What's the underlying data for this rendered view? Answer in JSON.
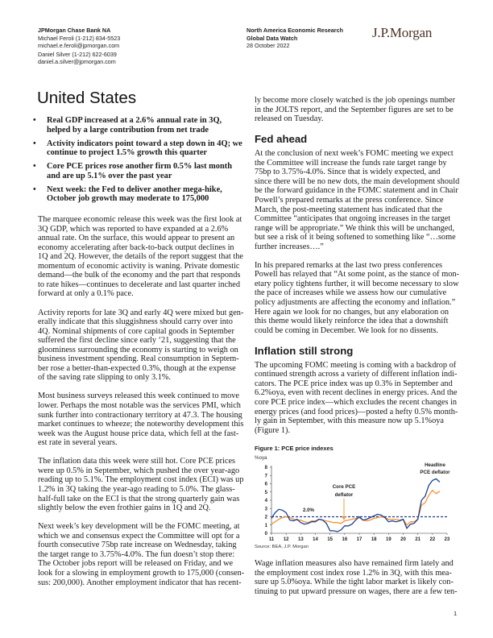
{
  "header": {
    "left": {
      "org": "JPMorgan Chase Bank NA",
      "authors": [
        {
          "name_phone": "Michael Feroli (1-212) 834-5523",
          "email": "michael.e.feroli@jpmorgan.com"
        },
        {
          "name_phone": "Daniel Silver (1-212) 622-6039",
          "email": "daniel.a.silver@jpmorgan.com"
        }
      ]
    },
    "center": {
      "dept": "North America Economic Research",
      "publication": "Global Data Watch",
      "date": "28 October 2022"
    },
    "logo": "J.P.Morgan"
  },
  "title": "United States",
  "bullets": [
    [
      "Real GDP increased at a 2.6% annual rate in 3Q,",
      "helped by a large contribution from net trade"
    ],
    [
      "Activity indicators point toward a step down in 4Q; we",
      "continue to project 1.5% growth this quarter"
    ],
    [
      "Core PCE prices rose another firm 0.5% last month",
      "and are up 5.1% over the past year"
    ],
    [
      "Next week: the Fed to deliver another mega-hike,",
      "October job growth may moderate to 175,000"
    ]
  ],
  "left_paragraphs": [
    [
      "The marquee economic release this week was the first look at",
      "3Q GDP, which was reported to have expanded at a 2.6%",
      "annual rate. On the surface, this would appear to present an",
      "economy accelerating after back-to-back output declines in",
      "1Q and 2Q. However, the details of the report suggest that the",
      "momentum of economic activity is waning. Private domestic",
      "demand—the bulk of the economy and the part that responds",
      "to rate hikes—continues to decelerate and last quarter inched",
      "forward at only a 0.1% pace."
    ],
    [
      "Activity reports for late 3Q and early 4Q were mixed but gen-",
      "erally indicate that this sluggishness should carry over into",
      "4Q. Nominal shipments of core capital goods in September",
      "suffered the first decline since early ‘21, suggesting that the",
      "gloominess surrounding the economy is starting to weigh on",
      "business investment spending. Real consumption in Septem-",
      "ber rose a better-than-expected 0.3%, though at the expense",
      "of the saving rate slipping to only 3.1%."
    ],
    [
      "Most business surveys released this week continued to move",
      "lower. Perhaps the most notable was the services PMI, which",
      "sunk further into contractionary territory at 47.3. The housing",
      "market continues to wheeze; the noteworthy development this",
      "week was the August house price data, which fell at the fast-",
      "est rate in several years."
    ],
    [
      "The inflation data this week were still hot. Core PCE prices",
      "were up 0.5% in September, which pushed the over year-ago",
      "reading up to 5.1%. The employment cost index (ECI) was up",
      "1.2% in 3Q taking the year-ago reading to 5.0%. The glass-",
      "half-full take on the ECI is that the strong quarterly gain was",
      "slightly below the even frothier gains in 1Q and 2Q."
    ],
    [
      "Next week’s key development will be the FOMC meeting, at",
      "which we and consensus expect the Committee will opt for a",
      "fourth consecutive 75bp rate increase on Wednesday, taking",
      "the target range to 3.75%-4.0%. The fun doesn’t stop there:",
      "The October jobs report will be released on Friday, and we",
      "look for a slowing in employment growth to 175,000 (consen-",
      "sus: 200,000). Another employment indicator that has recent-"
    ]
  ],
  "right_top": [
    "ly become more closely watched is the job openings number",
    "in the JOLTS report, and the September figures are set to be",
    "released on Tuesday."
  ],
  "fed_ahead": {
    "heading": "Fed ahead",
    "paragraphs": [
      [
        "At the conclusion of next week’s FOMC meeting we expect",
        "the Committee will increase the funds rate target range by",
        "75bp to 3.75%-4.0%.  Since that is widely expected, and",
        "since there will be no new dots, the main development should",
        "be the forward guidance in the FOMC statement and in Chair",
        "Powell’s prepared remarks at the press conference. Since",
        "March, the post-meeting statement has indicated that the",
        "Committee “anticipates that ongoing increases in the target",
        "range will be appropriate.” We think this will be unchanged,",
        "but see a risk of it being softened to something like “…some",
        "further increases….”"
      ],
      [
        "In his prepared remarks at the last two press conferences",
        "Powell has relayed that “At some point, as the stance of mon-",
        "etary policy tightens further, it will become necessary to slow",
        "the pace of increases while we assess how our cumulative",
        "policy adjustments are affecting the economy and inflation.”",
        "Here again we look for no changes, but any elaboration on",
        "this theme would likely reinforce the idea that a downshift",
        "could be coming in December. We look for no dissents."
      ]
    ]
  },
  "inflation": {
    "heading": "Inflation still strong",
    "paragraph": [
      "The upcoming FOMC meeting is coming with a backdrop of",
      "continued strength across a variety of different inflation indi-",
      "cators. The PCE price index was up 0.3% in September and",
      "6.2%oya, even with recent declines in energy prices. And the",
      "core PCE price index—which excludes the recent changes in",
      "energy prices (and food prices)—posted a hefty 0.5% month-",
      "ly gain in September, with this measure now up 5.1%oya",
      "(Figure 1)."
    ],
    "after_figure": [
      "Wage inflation measures also have remained firm lately and",
      "the employment cost index rose 1.2% in 3Q, with this mea-",
      "sure up 5.0%oya. While the tight labor market is likely con-",
      "tinuing to put upward pressure on wages, there are a few ten-"
    ]
  },
  "chart_data": {
    "type": "line",
    "title": "Figure 1: PCE price indexes",
    "ylabel": "%oya",
    "source": "Source: BEA, J.P. Morgan",
    "xlim": [
      2011,
      2023
    ],
    "ylim": [
      0,
      8
    ],
    "x_tick_labels": [
      "11",
      "12",
      "13",
      "14",
      "15",
      "16",
      "17",
      "18",
      "19",
      "20",
      "21",
      "22",
      "23"
    ],
    "y_tick_labels": [
      "0",
      "1",
      "2",
      "3",
      "4",
      "5",
      "6",
      "7",
      "8"
    ],
    "x_start": 2011,
    "x_step": 0.25,
    "series": [
      {
        "name": "Headline PCE deflator",
        "color": "#1f3f8f",
        "values": [
          1.8,
          2.5,
          2.9,
          2.8,
          2.5,
          1.6,
          1.5,
          1.7,
          1.3,
          1.1,
          1.2,
          1.4,
          1.4,
          1.7,
          1.6,
          1.2,
          0.3,
          0.3,
          0.2,
          0.4,
          0.9,
          0.9,
          1.1,
          1.6,
          2.0,
          1.6,
          1.7,
          1.9,
          2.1,
          2.3,
          2.2,
          1.9,
          1.4,
          1.5,
          1.4,
          1.5,
          1.7,
          0.6,
          1.1,
          1.2,
          1.7,
          4.0,
          4.5,
          5.8,
          6.4,
          6.6,
          6.2
        ]
      },
      {
        "name": "Core PCE deflator",
        "color": "#f5922f",
        "values": [
          1.1,
          1.4,
          1.7,
          1.9,
          2.0,
          1.9,
          1.7,
          1.6,
          1.6,
          1.4,
          1.3,
          1.5,
          1.5,
          1.7,
          1.6,
          1.5,
          1.4,
          1.3,
          1.3,
          1.2,
          1.5,
          1.6,
          1.7,
          1.8,
          1.9,
          1.6,
          1.5,
          1.6,
          1.8,
          1.9,
          2.0,
          1.9,
          1.7,
          1.7,
          1.7,
          1.6,
          1.7,
          1.0,
          1.4,
          1.4,
          1.7,
          3.4,
          3.7,
          4.6,
          5.2,
          4.8,
          5.1
        ]
      }
    ],
    "reference_line": {
      "value": 2.0,
      "label": "2.0%",
      "color": "#1f3f8f",
      "style": "dashed"
    },
    "annotations": {
      "core_1": "Core PCE",
      "core_2": "deflator",
      "headline_1": "Headline",
      "headline_2": "PCE deflator"
    },
    "grid": false
  },
  "page_number": "1"
}
